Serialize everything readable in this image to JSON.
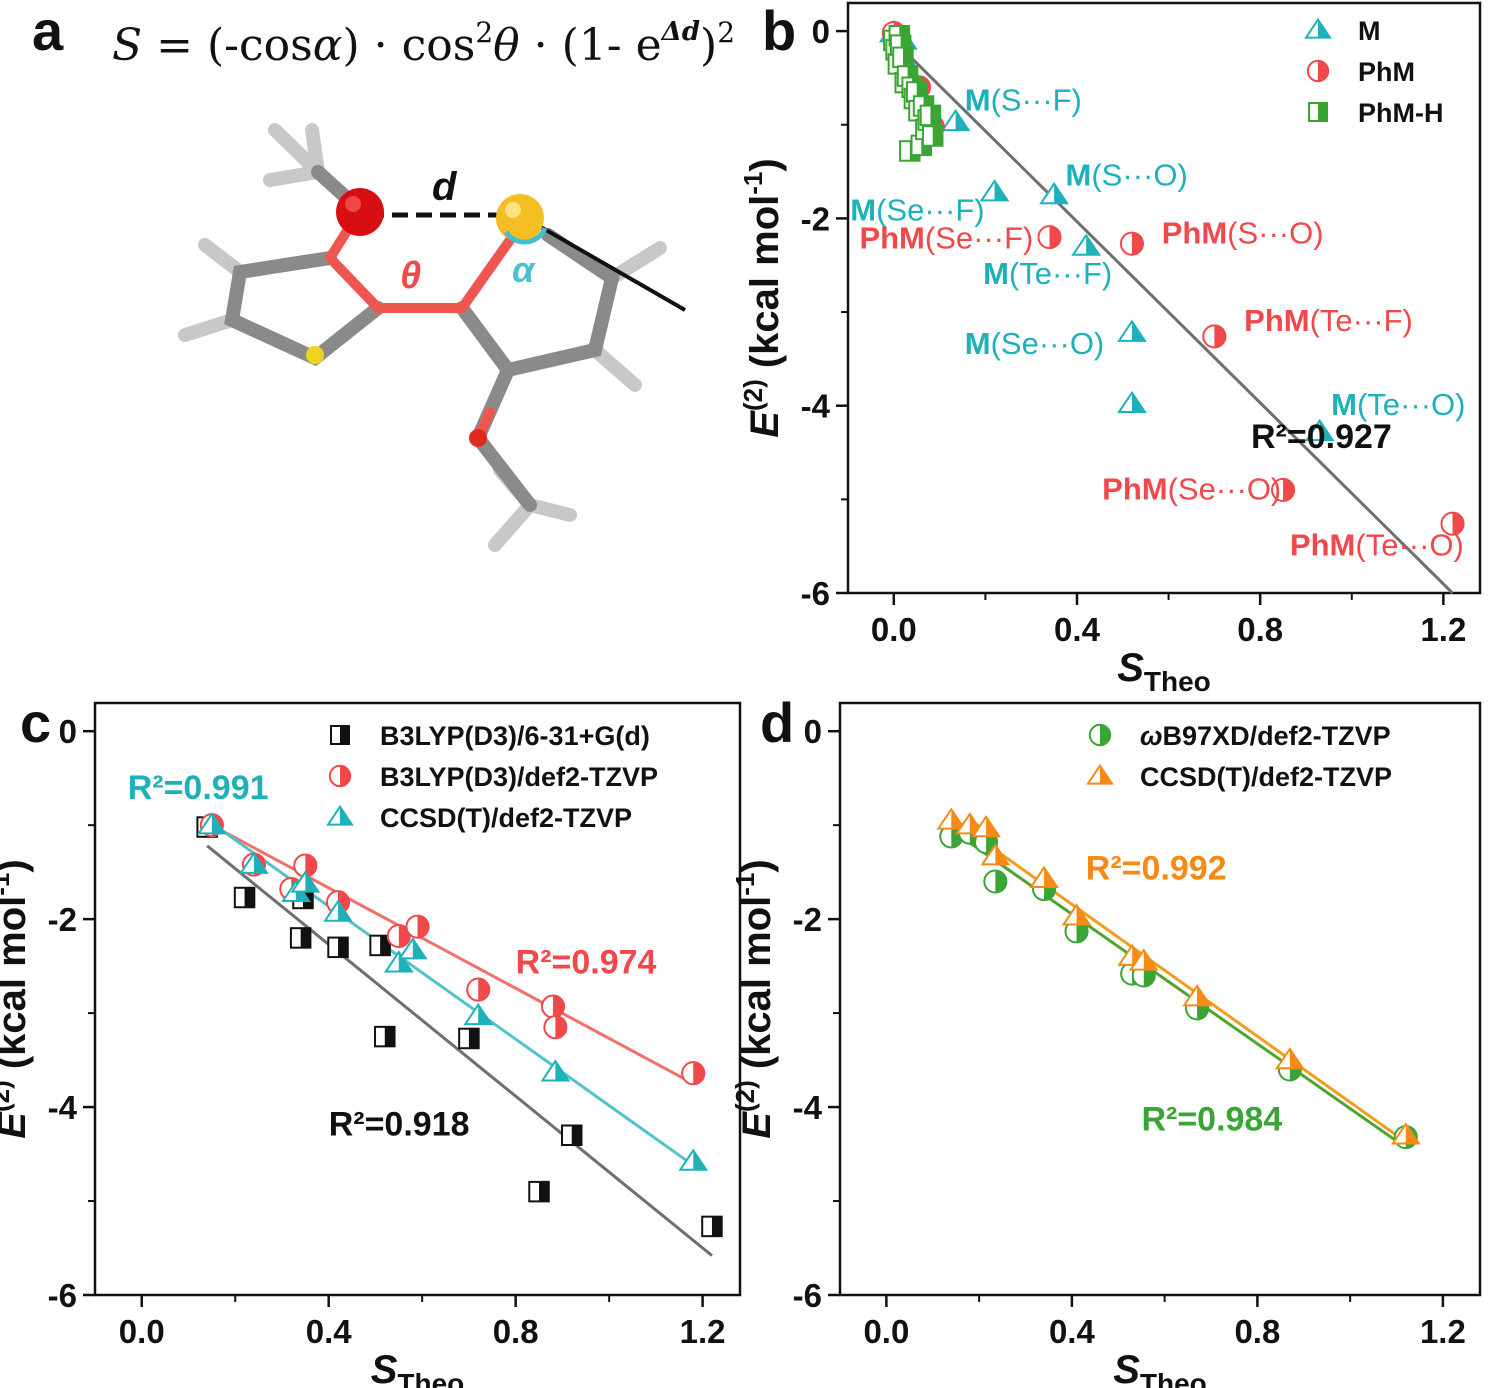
{
  "figure": {
    "panel_labels": [
      "a",
      "b",
      "c",
      "d"
    ],
    "formula": {
      "S": "S",
      "eq": " = (-cos",
      "alpha": "α",
      "mid": ") · cos",
      "sq": "2",
      "theta": "θ",
      "tail": " · (1- e",
      "exp": "Δd",
      "close": ")",
      "sq2": "2"
    },
    "molecule": {
      "label_d": "d",
      "label_theta": "θ",
      "label_alpha": "α"
    }
  },
  "colors": {
    "cyan": "#1fb1ba",
    "red": "#f0484b",
    "green": "#3aa535",
    "orange": "#f58a17",
    "black": "#111111",
    "gray_line": "#6f6f6f",
    "red_line": "#f2706a",
    "cyan_line": "#53c2cc",
    "green_line": "#4fa52c",
    "orange_line": "#f49c1f"
  },
  "chart_data": [
    {
      "panel": "b",
      "type": "scatter",
      "xlabel_main": "S",
      "xlabel_sub": "Theo",
      "ylabel_main": "E",
      "ylabel_sup": "(2)",
      "ylabel_unit": " (kcal mol",
      "ylabel_unit_sup": "-1",
      "ylabel_close": ")",
      "xlim": [
        -0.1,
        1.28
      ],
      "ylim": [
        -6,
        0.3
      ],
      "xticks": [
        0.0,
        0.4,
        0.8,
        1.2
      ],
      "xtick_labels": [
        "0.0",
        "0.4",
        "0.8",
        "1.2"
      ],
      "yticks": [
        0,
        -2,
        -4,
        -6
      ],
      "ytick_labels": [
        "0",
        "-2",
        "-4",
        "-6"
      ],
      "legend": [
        {
          "label": "M",
          "marker": "triangle",
          "color": "cyan"
        },
        {
          "label": "PhM",
          "marker": "circle",
          "color": "red"
        },
        {
          "label": "PhM-H",
          "marker": "square",
          "color": "green"
        }
      ],
      "series": [
        {
          "name": "M",
          "marker": "triangle",
          "color": "cyan",
          "x": [
            0.0,
            0.01,
            0.02,
            0.02,
            0.135,
            0.22,
            0.35,
            0.42,
            0.52,
            0.52,
            0.93
          ],
          "y": [
            -0.02,
            -0.05,
            -0.1,
            -0.3,
            -0.97,
            -1.72,
            -1.75,
            -2.3,
            -3.22,
            -3.98,
            -4.28
          ]
        },
        {
          "name": "PhM",
          "marker": "circle",
          "color": "red",
          "x": [
            0.0,
            0.055,
            0.085,
            0.34,
            0.52,
            0.7,
            0.85,
            1.22
          ],
          "y": [
            -0.02,
            -0.6,
            -1.02,
            -2.2,
            -2.27,
            -3.26,
            -4.9,
            -5.26
          ]
        },
        {
          "name": "PhM-H",
          "marker": "square",
          "color": "green",
          "x": [
            0.0,
            0.005,
            0.01,
            0.012,
            0.015,
            0.02,
            0.025,
            0.03,
            0.035,
            0.04,
            0.045,
            0.05,
            0.055,
            0.06,
            0.065,
            0.07,
            0.075,
            0.08,
            0.085
          ],
          "y": [
            -0.1,
            -0.2,
            -0.35,
            -0.05,
            -0.15,
            -0.28,
            -0.55,
            -0.48,
            -1.28,
            -0.6,
            -0.72,
            -0.65,
            -0.85,
            -1.22,
            -0.8,
            -1.05,
            -0.95,
            -0.9,
            -1.12
          ]
        }
      ],
      "fits": [
        {
          "color": "gray_line",
          "x": [
            0.0,
            1.22
          ],
          "y": [
            -0.1,
            -6.0
          ]
        }
      ],
      "r2": [
        {
          "text": "R²=0.927",
          "color": "black",
          "x": 0.78,
          "y": -4.45
        }
      ],
      "annotations": [
        {
          "bold": "M",
          "rest": "(S···F)",
          "color": "cyan",
          "x": 0.155,
          "y": -0.85
        },
        {
          "bold": "M",
          "rest": "(S···O)",
          "color": "cyan",
          "x": 0.375,
          "y": -1.65
        },
        {
          "bold": "M",
          "rest": "(Se···F)",
          "color": "cyan",
          "x": -0.095,
          "y": -2.02
        },
        {
          "bold": "PhM",
          "rest": "(Se···F)",
          "color": "red",
          "x": -0.075,
          "y": -2.32
        },
        {
          "bold": "PhM",
          "rest": "(S···O)",
          "color": "red",
          "x": 0.585,
          "y": -2.27
        },
        {
          "bold": "M",
          "rest": "(Te···F)",
          "color": "cyan",
          "x": 0.195,
          "y": -2.7
        },
        {
          "bold": "PhM",
          "rest": "(Te···F)",
          "color": "red",
          "x": 0.765,
          "y": -3.2
        },
        {
          "bold": "M",
          "rest": "(Se···O)",
          "color": "cyan",
          "x": 0.155,
          "y": -3.45
        },
        {
          "bold": "M",
          "rest": "(Te···O)",
          "color": "cyan",
          "x": 0.955,
          "y": -4.1
        },
        {
          "bold": "PhM",
          "rest": "(Se···O)",
          "color": "red",
          "x": 0.455,
          "y": -5.0
        },
        {
          "bold": "PhM",
          "rest": "(Te···O)",
          "color": "red",
          "x": 0.865,
          "y": -5.6
        }
      ]
    },
    {
      "panel": "c",
      "type": "scatter",
      "xlabel_main": "S",
      "xlabel_sub": "Theo",
      "ylabel_main": "E",
      "ylabel_sup": "(2)",
      "ylabel_unit": " (kcal mol",
      "ylabel_unit_sup": "-1",
      "ylabel_close": ")",
      "xlim": [
        -0.1,
        1.28
      ],
      "ylim": [
        -6,
        0.3
      ],
      "xticks": [
        0.0,
        0.4,
        0.8,
        1.2
      ],
      "xtick_labels": [
        "0.0",
        "0.4",
        "0.8",
        "1.2"
      ],
      "yticks": [
        0,
        -2,
        -4,
        -6
      ],
      "ytick_labels": [
        "0",
        "-2",
        "-4",
        "-6"
      ],
      "legend": [
        {
          "label": "B3LYP(D3)/6-31+G(d)",
          "marker": "square",
          "color": "black"
        },
        {
          "label": "B3LYP(D3)/def2-TZVP",
          "marker": "circle",
          "color": "red"
        },
        {
          "label": "CCSD(T)/def2-TZVP",
          "marker": "triangle",
          "color": "cyan"
        }
      ],
      "series": [
        {
          "name": "B3LYP(D3)/6-31+G(d)",
          "marker": "square",
          "color": "black",
          "x": [
            0.14,
            0.22,
            0.34,
            0.345,
            0.42,
            0.51,
            0.52,
            0.7,
            0.85,
            0.92,
            1.22
          ],
          "y": [
            -1.02,
            -1.77,
            -2.2,
            -1.78,
            -2.3,
            -2.28,
            -3.25,
            -3.27,
            -4.9,
            -4.3,
            -5.27
          ]
        },
        {
          "name": "B3LYP(D3)/def2-TZVP",
          "marker": "circle",
          "color": "red",
          "x": [
            0.15,
            0.24,
            0.32,
            0.35,
            0.42,
            0.55,
            0.59,
            0.72,
            0.88,
            0.885,
            1.18
          ],
          "y": [
            -1.0,
            -1.42,
            -1.68,
            -1.43,
            -1.82,
            -2.18,
            -2.08,
            -2.75,
            -2.93,
            -3.15,
            -3.64
          ]
        },
        {
          "name": "CCSD(T)/def2-TZVP",
          "marker": "triangle",
          "color": "cyan",
          "x": [
            0.15,
            0.24,
            0.33,
            0.35,
            0.42,
            0.55,
            0.58,
            0.72,
            0.885,
            1.18
          ],
          "y": [
            -1.0,
            -1.42,
            -1.72,
            -1.62,
            -1.93,
            -2.47,
            -2.33,
            -3.03,
            -3.63,
            -4.58
          ]
        }
      ],
      "fits": [
        {
          "color": "gray_line",
          "x": [
            0.14,
            1.22
          ],
          "y": [
            -1.22,
            -5.58
          ]
        },
        {
          "color": "red_line",
          "x": [
            0.15,
            1.18
          ],
          "y": [
            -1.0,
            -3.75
          ]
        },
        {
          "color": "cyan_line",
          "x": [
            0.15,
            1.18
          ],
          "y": [
            -0.98,
            -4.62
          ]
        }
      ],
      "r2": [
        {
          "text": "R²=0.991",
          "color": "cyan",
          "x": -0.03,
          "y": -0.72
        },
        {
          "text": "R²=0.974",
          "color": "red",
          "x": 0.8,
          "y": -2.58
        },
        {
          "text": "R²=0.918",
          "color": "black",
          "x": 0.4,
          "y": -4.3
        }
      ],
      "annotations": []
    },
    {
      "panel": "d",
      "type": "scatter",
      "xlabel_main": "S",
      "xlabel_sub": "Theo",
      "ylabel_main": "E",
      "ylabel_sup": "(2)",
      "ylabel_unit": " (kcal mol",
      "ylabel_unit_sup": "-1",
      "ylabel_close": ")",
      "xlim": [
        -0.1,
        1.28
      ],
      "ylim": [
        -6,
        0.3
      ],
      "xticks": [
        0.0,
        0.4,
        0.8,
        1.2
      ],
      "xtick_labels": [
        "0.0",
        "0.4",
        "0.8",
        "1.2"
      ],
      "yticks": [
        0,
        -2,
        -4,
        -6
      ],
      "ytick_labels": [
        "0",
        "-2",
        "-4",
        "-6"
      ],
      "legend": [
        {
          "label": "B97XD/def2-TZVP",
          "prefix": "ω",
          "marker": "circle",
          "color": "green"
        },
        {
          "label": "CCSD(T)/def2-TZVP",
          "marker": "triangle",
          "color": "orange"
        }
      ],
      "series": [
        {
          "name": "ωB97XD/def2-TZVP",
          "marker": "circle",
          "color": "green",
          "x": [
            0.14,
            0.18,
            0.215,
            0.235,
            0.34,
            0.41,
            0.53,
            0.555,
            0.67,
            0.87,
            1.12
          ],
          "y": [
            -1.12,
            -1.08,
            -1.18,
            -1.6,
            -1.68,
            -2.13,
            -2.58,
            -2.6,
            -2.95,
            -3.6,
            -4.32
          ]
        },
        {
          "name": "CCSD(T)/def2-TZVP",
          "marker": "triangle",
          "color": "orange",
          "x": [
            0.14,
            0.18,
            0.215,
            0.235,
            0.34,
            0.41,
            0.53,
            0.555,
            0.67,
            0.87,
            1.12
          ],
          "y": [
            -0.95,
            -1.0,
            -1.03,
            -1.33,
            -1.57,
            -1.97,
            -2.4,
            -2.45,
            -2.83,
            -3.5,
            -4.3
          ]
        }
      ],
      "fits": [
        {
          "color": "green_line",
          "x": [
            0.14,
            1.12
          ],
          "y": [
            -1.05,
            -4.43
          ]
        },
        {
          "color": "orange_line",
          "x": [
            0.14,
            1.12
          ],
          "y": [
            -0.93,
            -4.37
          ]
        }
      ],
      "r2": [
        {
          "text": "R²=0.992",
          "color": "orange",
          "x": 0.43,
          "y": -1.58
        },
        {
          "text": "R²=0.984",
          "color": "green",
          "x": 0.55,
          "y": -4.25
        }
      ],
      "annotations": []
    }
  ]
}
